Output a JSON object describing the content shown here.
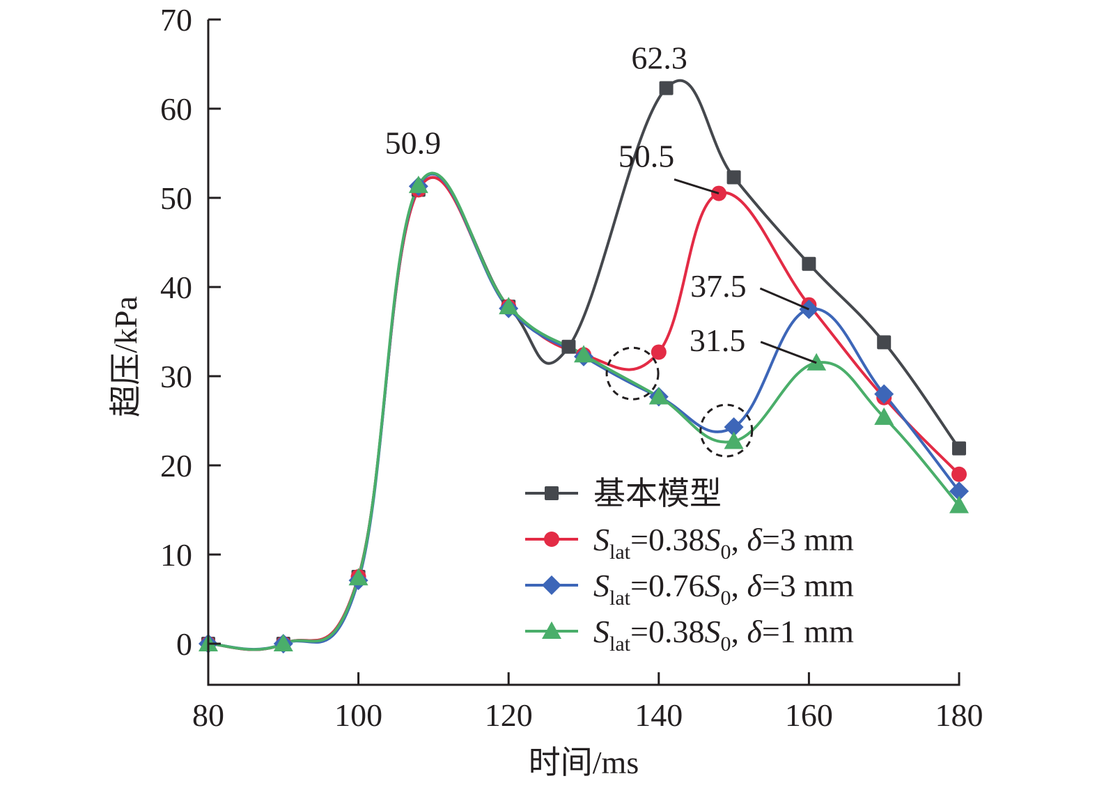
{
  "chart_data": {
    "type": "line",
    "title": "",
    "xlabel": "时间/ms",
    "ylabel": "超压/kPa",
    "xlim": [
      80,
      180
    ],
    "ylim": [
      -5,
      70
    ],
    "x_ticks": [
      80,
      100,
      120,
      140,
      160,
      180
    ],
    "y_ticks": [
      0,
      10,
      20,
      30,
      40,
      50,
      60,
      70
    ],
    "grid": false,
    "legend_position": "bottom-right",
    "series": [
      {
        "name": "基本模型",
        "legend": {
          "main": "基本模型"
        },
        "color": "#45484d",
        "marker": "square",
        "x": [
          80,
          90,
          100,
          108,
          120,
          128,
          141,
          150,
          160,
          170,
          180
        ],
        "y": [
          0,
          0,
          7.5,
          50.9,
          37.8,
          33.3,
          62.3,
          52.3,
          42.6,
          33.8,
          21.9
        ]
      },
      {
        "name": "Slat=0.38S0, δ=3 mm",
        "legend": {
          "s": "S",
          "sub": "lat",
          "eq": "=0.38",
          "s0": "S",
          "sub0": "0",
          "rest1": ", ",
          "delta": "δ",
          "rest2": "=3 mm"
        },
        "color": "#e32b45",
        "marker": "circle",
        "x": [
          80,
          90,
          100,
          108,
          120,
          130,
          140,
          148,
          160,
          170,
          180
        ],
        "y": [
          0,
          0,
          7.5,
          50.9,
          37.8,
          32.4,
          32.7,
          50.5,
          38.0,
          27.6,
          19.0
        ]
      },
      {
        "name": "Slat=0.76S0, δ=3 mm",
        "legend": {
          "s": "S",
          "sub": "lat",
          "eq": "=0.76",
          "s0": "S",
          "sub0": "0",
          "rest1": ", ",
          "delta": "δ",
          "rest2": "=3 mm"
        },
        "color": "#3d66b8",
        "marker": "diamond",
        "x": [
          80,
          90,
          100,
          108,
          120,
          130,
          140,
          150,
          160,
          170,
          180
        ],
        "y": [
          0,
          0,
          7.1,
          51.3,
          37.6,
          32.2,
          27.7,
          24.3,
          37.5,
          28.0,
          17.1
        ]
      },
      {
        "name": "Slat=0.38S0, δ=1 mm",
        "legend": {
          "s": "S",
          "sub": "lat",
          "eq": "=0.38",
          "s0": "S",
          "sub0": "0",
          "rest1": ", ",
          "delta": "δ",
          "rest2": "=1 mm"
        },
        "color": "#4aae6a",
        "marker": "triangle",
        "x": [
          80,
          90,
          100,
          108,
          120,
          130,
          140,
          150,
          161,
          170,
          180
        ],
        "y": [
          0,
          0,
          7.4,
          51.4,
          37.8,
          32.4,
          27.7,
          22.7,
          31.5,
          25.4,
          15.5
        ]
      }
    ],
    "annotations": [
      {
        "text": "50.9",
        "x": 108,
        "y": 50.9,
        "leader": false
      },
      {
        "text": "62.3",
        "x": 141,
        "y": 62.3,
        "leader": false
      },
      {
        "text": "50.5",
        "x": 148,
        "y": 50.5,
        "leader": true
      },
      {
        "text": "37.5",
        "x": 160,
        "y": 37.5,
        "leader": true
      },
      {
        "text": "31.5",
        "x": 161,
        "y": 31.5,
        "leader": true
      }
    ],
    "highlight_circles": [
      {
        "x": 136.5,
        "y": 30.3
      },
      {
        "x": 149,
        "y": 23.9
      }
    ]
  }
}
